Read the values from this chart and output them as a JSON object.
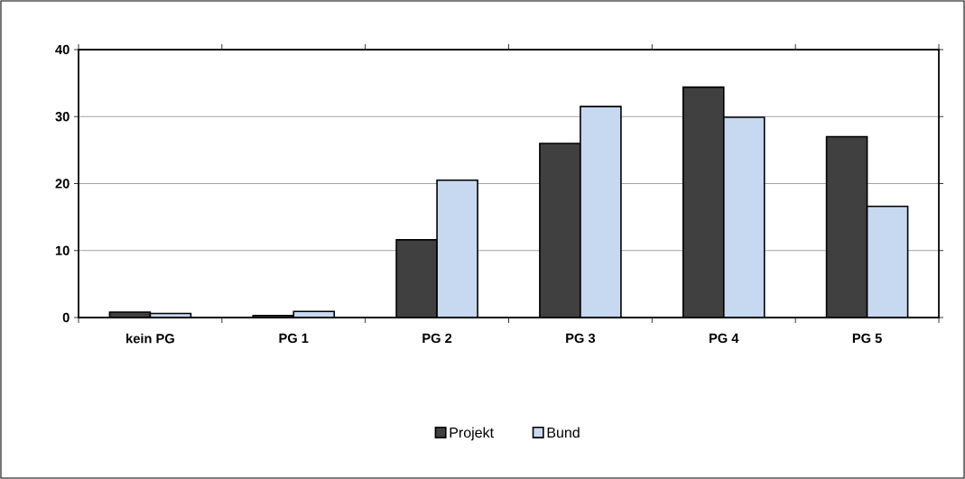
{
  "chart_data": {
    "type": "bar",
    "categories": [
      "kein PG",
      "PG 1",
      "PG 2",
      "PG 3",
      "PG 4",
      "PG 5"
    ],
    "series": [
      {
        "name": "Projekt",
        "color": "#404040",
        "values": [
          0.8,
          0.3,
          11.6,
          26.0,
          34.4,
          27.0
        ]
      },
      {
        "name": "Bund",
        "color": "#c6d9f0",
        "values": [
          0.6,
          0.9,
          20.5,
          31.5,
          29.9,
          16.6
        ]
      }
    ],
    "ylim": [
      0,
      40
    ],
    "yticks": [
      0,
      10,
      20,
      30,
      40
    ],
    "grid": "y",
    "legend": "bottom"
  }
}
